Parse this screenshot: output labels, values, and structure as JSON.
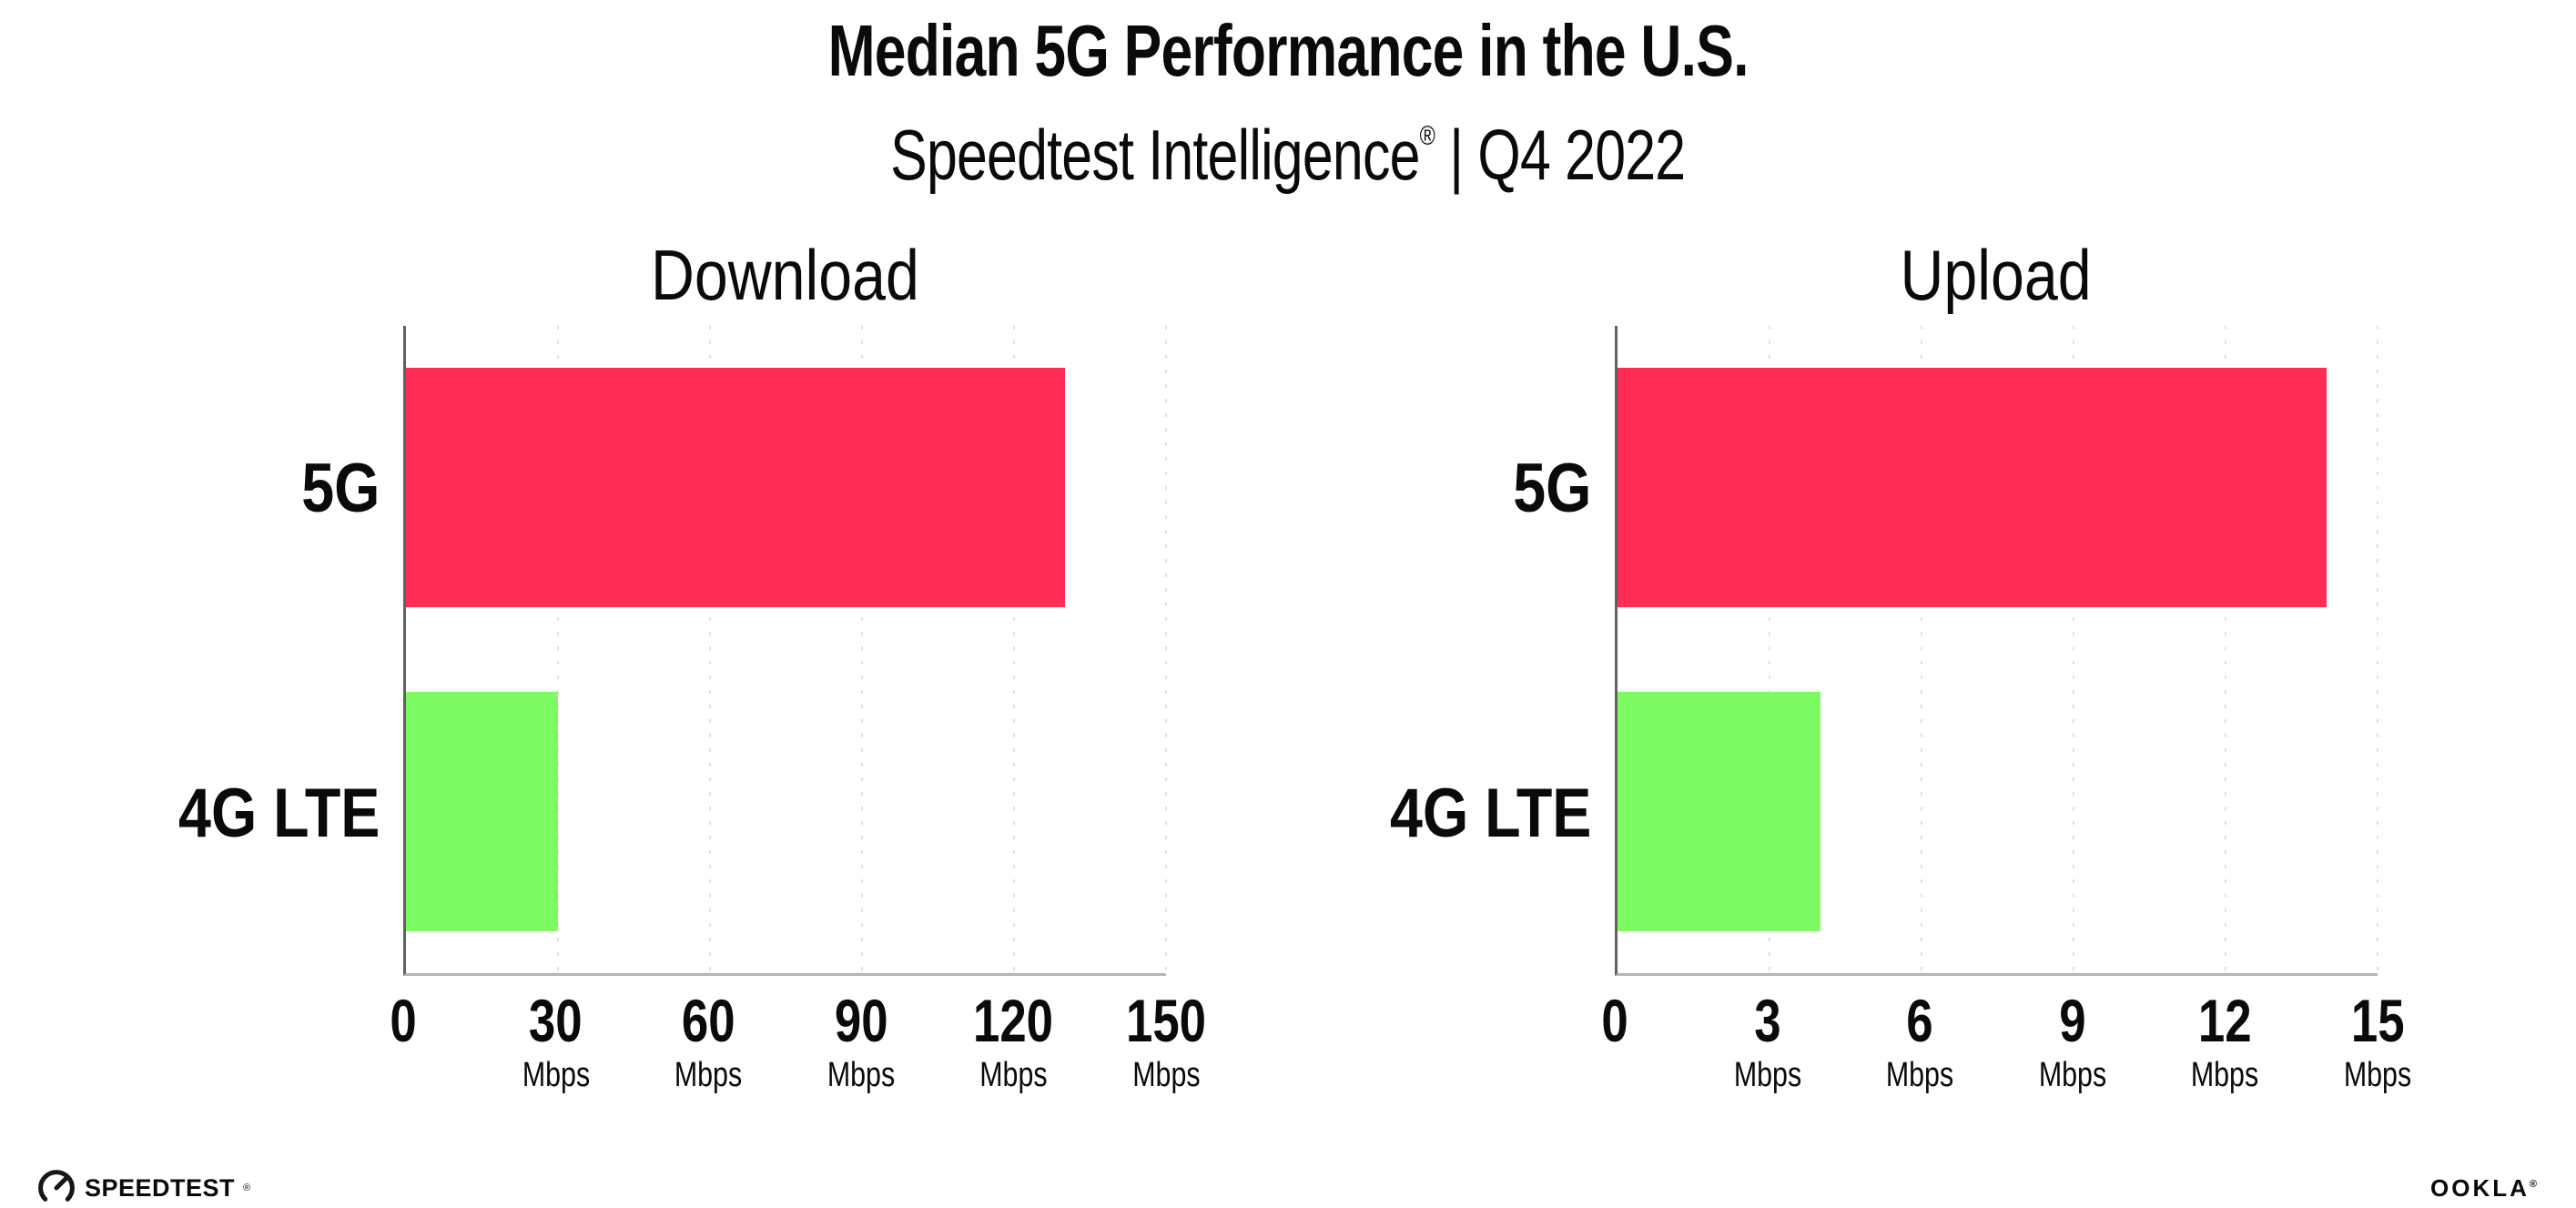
{
  "header": {
    "title": "Median 5G Performance in the U.S.",
    "subtitle_brand": "Speedtest Intelligence",
    "subtitle_reg": "®",
    "subtitle_rest": " | Q4 2022"
  },
  "colors": {
    "bar_5g": "#FF2D55",
    "bar_4g_lte": "#7DFB63",
    "axis_y": "#606060",
    "axis_x": "#b5b5b5",
    "grid": "#e0e0e8",
    "text": "#0a0a0a",
    "background": "#ffffff"
  },
  "chart_data": [
    {
      "type": "bar",
      "orientation": "horizontal",
      "title": "Download",
      "categories": [
        "5G",
        "4G LTE"
      ],
      "values": [
        130,
        30
      ],
      "bar_colors": [
        "#FF2D55",
        "#7DFB63"
      ],
      "unit": "Mbps",
      "xlim": [
        0,
        150
      ],
      "ticks": [
        {
          "value": 0,
          "label": "0",
          "sub": ""
        },
        {
          "value": 30,
          "label": "30",
          "sub": "Mbps"
        },
        {
          "value": 60,
          "label": "60",
          "sub": "Mbps"
        },
        {
          "value": 90,
          "label": "90",
          "sub": "Mbps"
        },
        {
          "value": 120,
          "label": "120",
          "sub": "Mbps"
        },
        {
          "value": 150,
          "label": "150",
          "sub": "Mbps"
        }
      ],
      "grid": "dotted-vertical",
      "legend": "none",
      "value_labels_shown": false
    },
    {
      "type": "bar",
      "orientation": "horizontal",
      "title": "Upload",
      "categories": [
        "5G",
        "4G LTE"
      ],
      "values": [
        14,
        4
      ],
      "bar_colors": [
        "#FF2D55",
        "#7DFB63"
      ],
      "unit": "Mbps",
      "xlim": [
        0,
        15
      ],
      "ticks": [
        {
          "value": 0,
          "label": "0",
          "sub": ""
        },
        {
          "value": 3,
          "label": "3",
          "sub": "Mbps"
        },
        {
          "value": 6,
          "label": "6",
          "sub": "Mbps"
        },
        {
          "value": 9,
          "label": "9",
          "sub": "Mbps"
        },
        {
          "value": 12,
          "label": "12",
          "sub": "Mbps"
        },
        {
          "value": 15,
          "label": "15",
          "sub": "Mbps"
        }
      ],
      "grid": "dotted-vertical",
      "legend": "none",
      "value_labels_shown": false
    }
  ],
  "footer": {
    "speedtest_label": "SPEEDTEST",
    "speedtest_reg": "®",
    "ookla_label": "OOKLA",
    "ookla_reg": "®"
  }
}
